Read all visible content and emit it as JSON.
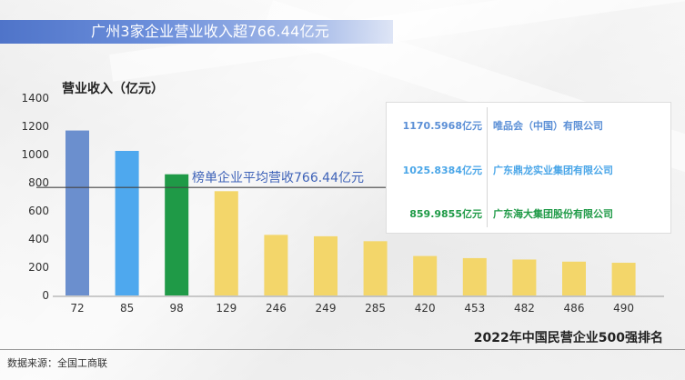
{
  "title": "广州3家企业营业收入超766.44亿元",
  "source": "数据来源：全国工商联",
  "legend": [
    {
      "value": "1170.5968亿元",
      "company": "唯品会（中国）有限公司",
      "color": "#5b8fd6"
    },
    {
      "value": "1025.8384亿元",
      "company": "广东鼎龙实业集团有限公司",
      "color": "#4aa6e8"
    },
    {
      "value": "859.9855亿元",
      "company": "广东海大集团股份有限公司",
      "color": "#1f9a47"
    }
  ],
  "chart_data": {
    "type": "bar",
    "ylabel": "营业收入（亿元）",
    "xlabel": "2022年中国民营企业500强排名",
    "categories": [
      "72",
      "85",
      "98",
      "129",
      "246",
      "249",
      "285",
      "420",
      "453",
      "482",
      "486",
      "490"
    ],
    "values": [
      1170.5968,
      1025.8384,
      859.9855,
      740,
      430,
      420,
      385,
      280,
      265,
      255,
      240,
      232
    ],
    "bar_colors": [
      "#6b8fce",
      "#4ea8ee",
      "#1f9a47",
      "#f3d66a",
      "#f3d66a",
      "#f3d66a",
      "#f3d66a",
      "#f3d66a",
      "#f3d66a",
      "#f3d66a",
      "#f3d66a",
      "#f3d66a"
    ],
    "yticks": [
      0,
      200,
      400,
      600,
      800,
      1000,
      1200,
      1400
    ],
    "ylim": [
      0,
      1400
    ],
    "reference_line": {
      "value": 766.44,
      "label": "榜单企业平均营收766.44亿元",
      "color": "#444444",
      "label_color": "#3f63b8"
    },
    "grid": false
  }
}
